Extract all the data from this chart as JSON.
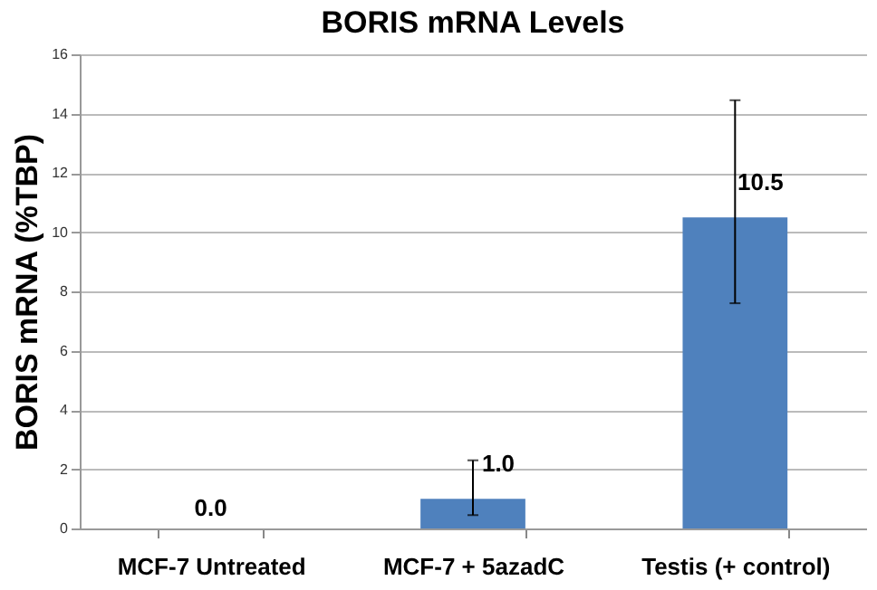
{
  "chart_data": {
    "type": "bar",
    "title": "BORIS mRNA Levels",
    "ylabel": "BORIS mRNA  (%TBP)",
    "categories": [
      "MCF-7 Untreated",
      "MCF-7 + 5azadC",
      "Testis (+ control)"
    ],
    "values": [
      0.0,
      1.0,
      10.5
    ],
    "color": "#4f81bd",
    "errors": [
      null,
      [
        0.45,
        2.3
      ],
      [
        7.6,
        14.45
      ]
    ],
    "value_labels": [
      "0.0",
      "1.0",
      "10.5"
    ],
    "ylim": [
      0,
      16
    ],
    "yticks": [
      0,
      2,
      4,
      6,
      8,
      10,
      12,
      14,
      16
    ],
    "grid": "y"
  }
}
